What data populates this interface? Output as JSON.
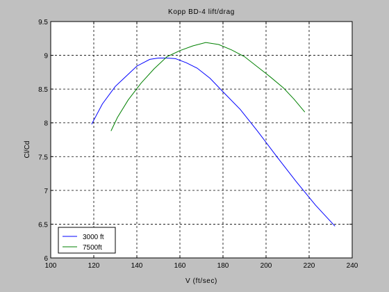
{
  "chart_data": {
    "type": "line",
    "title": "Kopp BD-4 lift/drag",
    "xlabel": "V  (ft/sec)",
    "ylabel": "Cl/Cd",
    "xlim": [
      100,
      240
    ],
    "ylim": [
      6,
      9.5
    ],
    "xticks": [
      100,
      120,
      140,
      160,
      180,
      200,
      220,
      240
    ],
    "yticks": [
      6,
      6.5,
      7,
      7.5,
      8,
      8.5,
      9,
      9.5
    ],
    "xtick_labels": [
      "100",
      "120",
      "140",
      "160",
      "180",
      "200",
      "220",
      "240"
    ],
    "ytick_labels": [
      "6",
      "6.5",
      "7",
      "7.5",
      "8",
      "8.5",
      "9",
      "9.5"
    ],
    "grid": true,
    "grid_style": "dashed",
    "legend_position": "bottom-left",
    "background": "#c0c0c0",
    "plot_background": "#ffffff",
    "series": [
      {
        "name": "3000 ft",
        "color": "#0000ff",
        "x": [
          119,
          124,
          130,
          134,
          140,
          146,
          150,
          154,
          158,
          163,
          168,
          174,
          180,
          188,
          196,
          205,
          214,
          223,
          232
        ],
        "y": [
          7.98,
          8.28,
          8.54,
          8.66,
          8.84,
          8.94,
          8.96,
          8.96,
          8.95,
          8.89,
          8.81,
          8.66,
          8.46,
          8.2,
          7.88,
          7.5,
          7.13,
          6.78,
          6.47
        ]
      },
      {
        "name": "7500ft",
        "color": "#008000",
        "x": [
          128,
          131,
          136,
          142,
          148,
          154,
          160,
          166,
          172,
          178,
          184,
          190,
          196,
          202,
          208,
          213,
          218
        ],
        "y": [
          7.88,
          8.08,
          8.34,
          8.59,
          8.8,
          8.98,
          9.07,
          9.14,
          9.19,
          9.16,
          9.08,
          8.98,
          8.83,
          8.68,
          8.52,
          8.35,
          8.16
        ]
      }
    ]
  }
}
